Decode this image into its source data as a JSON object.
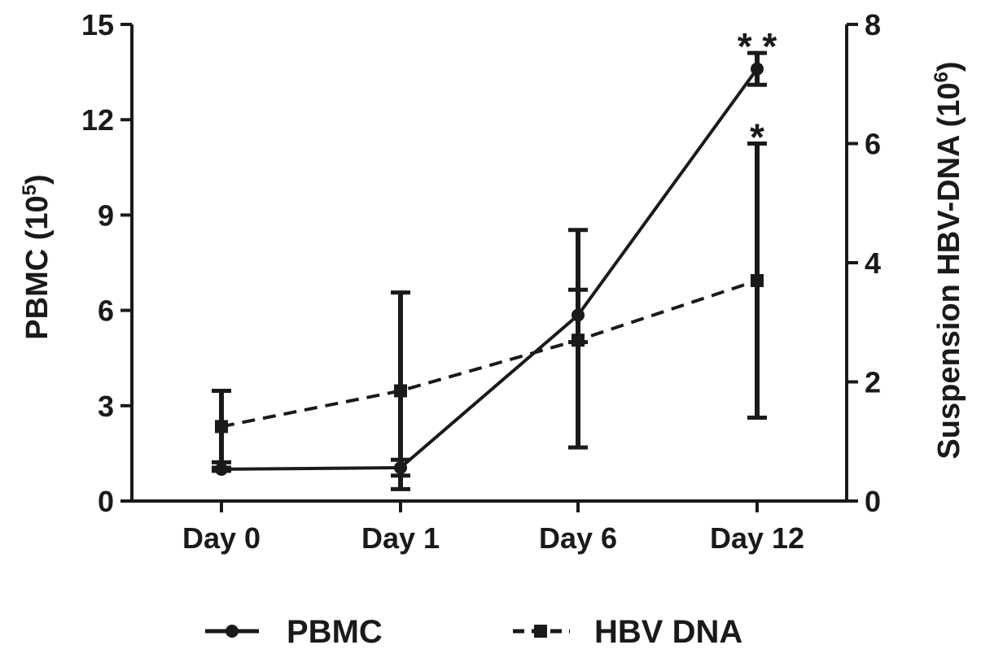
{
  "chart_data": {
    "type": "line",
    "categories": [
      "Day 0",
      "Day 1",
      "Day 6",
      "Day 12"
    ],
    "y_left": {
      "label": "PBMC (10",
      "label_exponent": "5",
      "label_suffix": ")",
      "range": [
        0,
        15
      ],
      "ticks": [
        0,
        3,
        6,
        9,
        12,
        15
      ]
    },
    "y_right": {
      "label": "Suspension HBV-DNA (10",
      "label_exponent": "6",
      "label_suffix": ")",
      "range": [
        0,
        8
      ],
      "ticks": [
        0,
        2,
        4,
        6,
        8
      ]
    },
    "series": [
      {
        "name": "PBMC",
        "axis": "left",
        "line_style": "solid",
        "marker": "circle",
        "values": [
          1.0,
          1.05,
          5.85,
          13.6
        ],
        "error_low": [
          0.95,
          0.8,
          5.0,
          13.1
        ],
        "error_high": [
          1.05,
          1.3,
          6.65,
          14.1
        ]
      },
      {
        "name": "HBV DNA",
        "axis": "right",
        "line_style": "dashed",
        "marker": "square",
        "values": [
          1.25,
          1.85,
          2.7,
          3.7
        ],
        "error_low": [
          0.65,
          0.2,
          0.9,
          1.4
        ],
        "error_high": [
          1.85,
          3.5,
          4.55,
          6.0
        ]
      }
    ],
    "annotations": [
      {
        "text": "* *",
        "category": "Day 12",
        "series": "PBMC"
      },
      {
        "text": "*",
        "category": "Day 12",
        "series": "HBV DNA"
      }
    ],
    "legend_position": "bottom",
    "grid": false
  }
}
